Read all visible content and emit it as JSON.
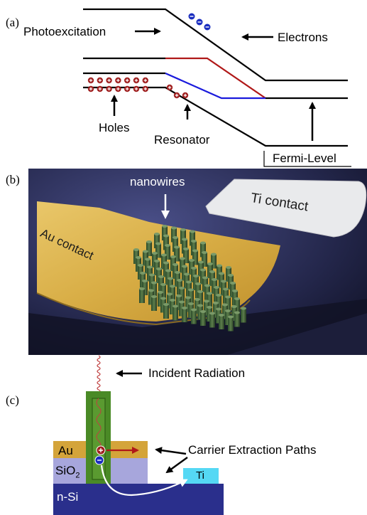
{
  "panel_a": {
    "tag": "(a)",
    "photoexcitation": "Photoexcitation",
    "electrons": "Electrons",
    "holes": "Holes",
    "resonator": "Resonator",
    "fermi_level": "Fermi-Level"
  },
  "panel_b": {
    "tag": "(b)",
    "nanowires": "nanowires",
    "ti_contact": "Ti contact",
    "au_contact": "Au contact"
  },
  "panel_c": {
    "tag": "(c)",
    "incident_radiation": "Incident Radiation",
    "carrier_extraction": "Carrier Extraction Paths",
    "au": "Au",
    "sio2_main": "SiO",
    "sio2_sub": "2",
    "ti": "Ti",
    "nsi": "n-Si"
  },
  "colors": {
    "red_band": "#b01818",
    "blue_band": "#1a1adc",
    "au_gold": "#d4a43a",
    "sio2": "#a7a6dc",
    "nsi": "#2a2f8c",
    "ti": "#55d8f4",
    "nanowire_green": "#4a8a26",
    "hole_red": "#a02020",
    "electron_blue": "#1a2dbf"
  }
}
